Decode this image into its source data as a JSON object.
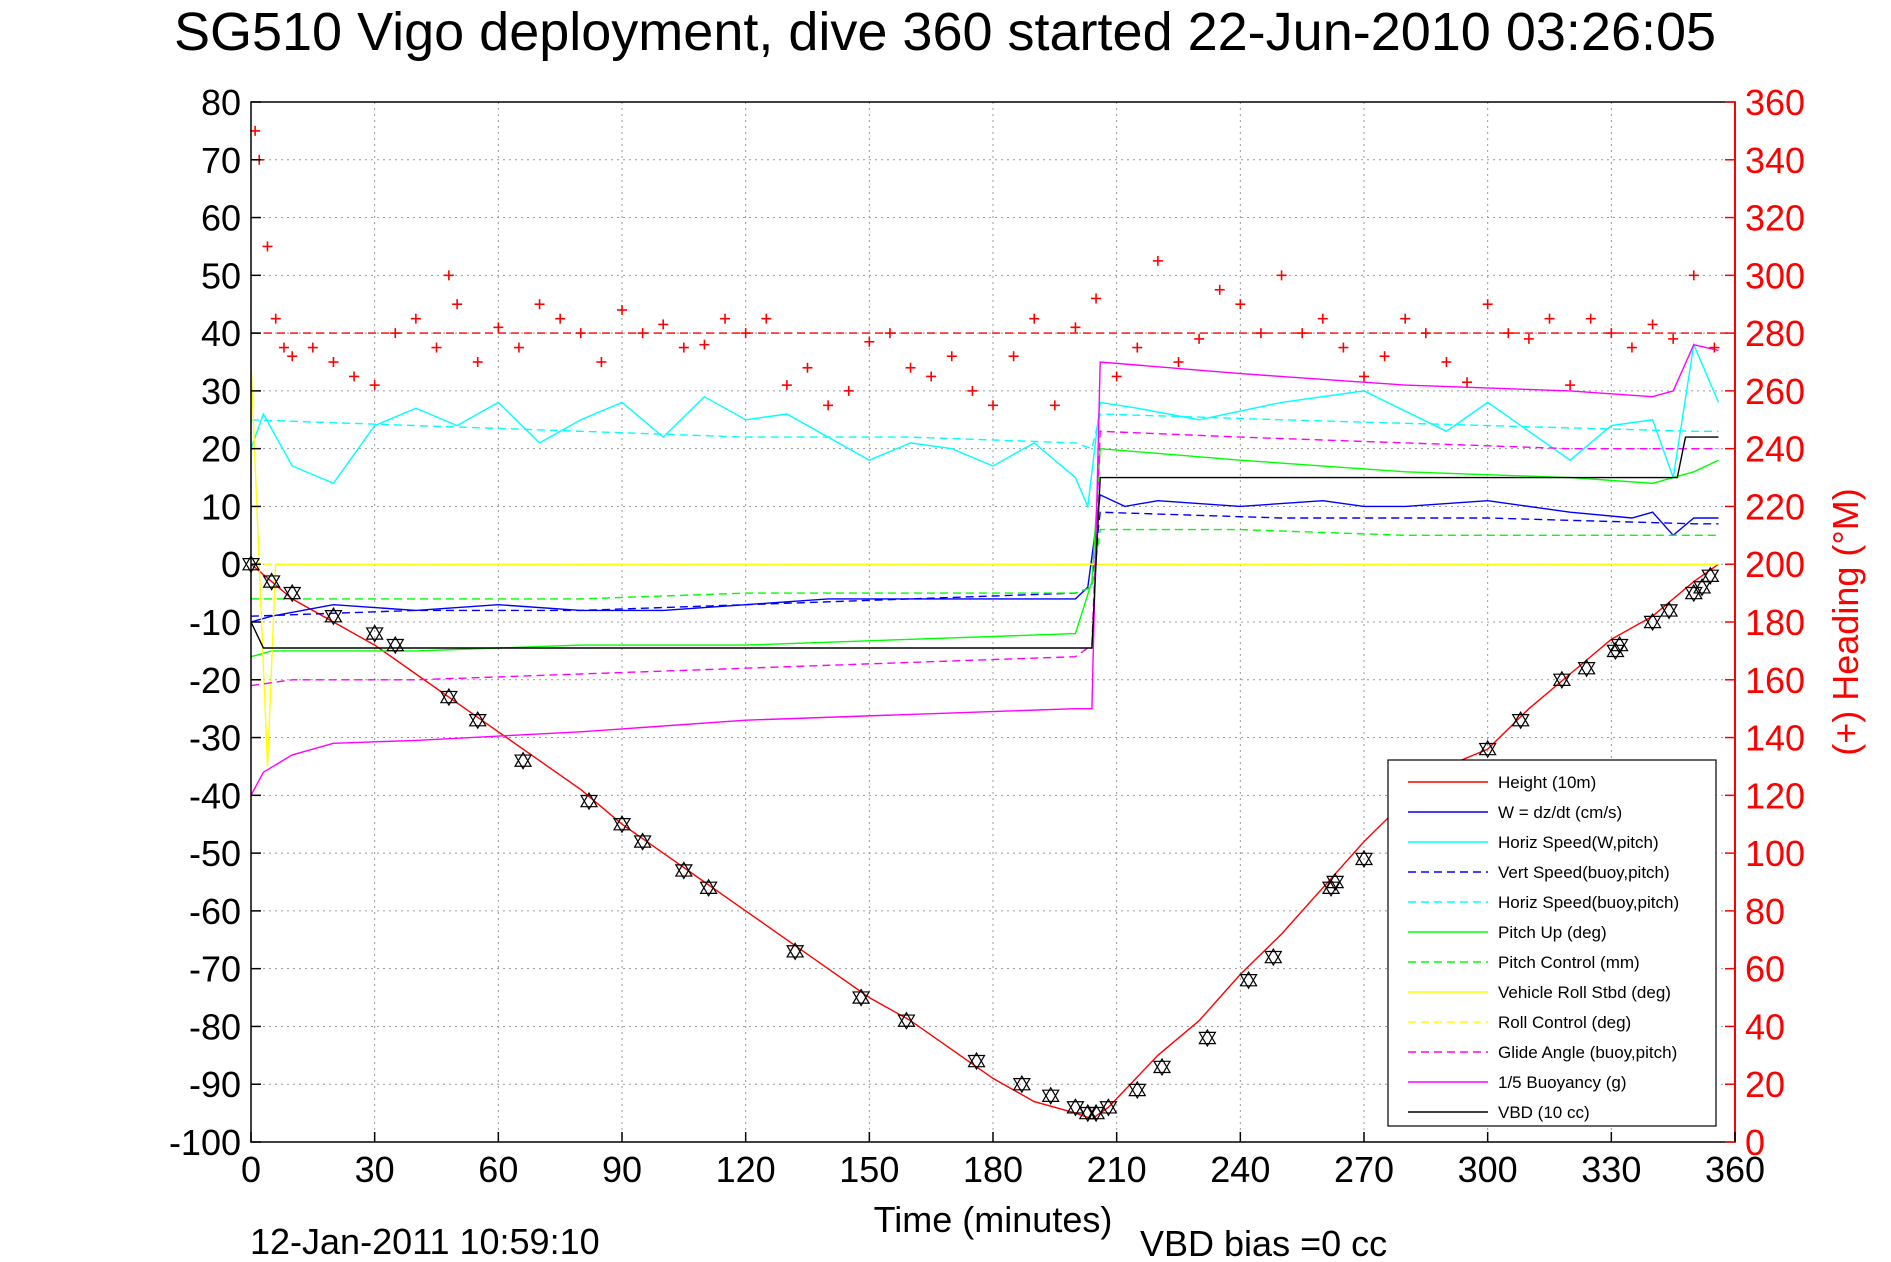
{
  "chart_data": {
    "type": "line",
    "title": "SG510 Vigo deployment, dive 360 started 22-Jun-2010 03:26:05",
    "xlabel": "Time (minutes)",
    "ylabel": "",
    "y2label": "(+) Heading (°M)",
    "xlim": [
      0,
      360
    ],
    "ylim": [
      -100,
      80
    ],
    "y2lim": [
      0,
      360
    ],
    "xticks": [
      "0",
      "30",
      "60",
      "90",
      "120",
      "150",
      "180",
      "210",
      "240",
      "270",
      "300",
      "330",
      "360"
    ],
    "yticks": [
      "80",
      "70",
      "60",
      "50",
      "40",
      "30",
      "20",
      "10",
      "0",
      "-10",
      "-20",
      "-30",
      "-40",
      "-50",
      "-60",
      "-70",
      "-80",
      "-90",
      "-100"
    ],
    "y2ticks": [
      "360",
      "340",
      "320",
      "300",
      "280",
      "260",
      "240",
      "220",
      "200",
      "180",
      "160",
      "140",
      "120",
      "100",
      "80",
      "60",
      "40",
      "20",
      "0"
    ],
    "grid": true,
    "legend_position": "lower-right",
    "footer_date": "12-Jan-2011 10:59:10",
    "footer_bias": "VBD bias =0 cc",
    "series": [
      {
        "name": "Height (10m)",
        "color": "#ff0000",
        "style": "solid",
        "x": [
          0,
          10,
          20,
          30,
          40,
          50,
          60,
          70,
          80,
          90,
          100,
          110,
          120,
          130,
          140,
          150,
          160,
          170,
          180,
          190,
          200,
          204,
          208,
          212,
          220,
          230,
          240,
          250,
          260,
          270,
          280,
          290,
          300,
          310,
          320,
          330,
          340,
          350,
          356
        ],
        "y": [
          0,
          -6,
          -10,
          -14,
          -19,
          -24,
          -29,
          -34,
          -39,
          -45,
          -50,
          -55,
          -60,
          -65,
          -70,
          -75,
          -79,
          -84,
          -89,
          -93,
          -95,
          -96,
          -94,
          -91,
          -85,
          -79,
          -71,
          -64,
          -56,
          -48,
          -41,
          -35,
          -32,
          -25,
          -19,
          -13,
          -9,
          -3,
          0
        ]
      },
      {
        "name": "W = dz/dt (cm/s)",
        "color": "#0000ff",
        "style": "solid",
        "x": [
          0,
          5,
          20,
          40,
          60,
          80,
          100,
          120,
          140,
          160,
          180,
          200,
          203,
          206,
          212,
          220,
          240,
          260,
          270,
          280,
          300,
          320,
          335,
          340,
          345,
          350,
          356
        ],
        "y": [
          -10,
          -9,
          -7,
          -8,
          -7,
          -8,
          -8,
          -7,
          -6,
          -6,
          -6,
          -6,
          -4,
          12,
          10,
          11,
          10,
          11,
          10,
          10,
          11,
          9,
          8,
          9,
          5,
          8,
          8
        ]
      },
      {
        "name": "Horiz Speed(W,pitch)",
        "color": "#00ffff",
        "style": "solid",
        "x": [
          0,
          3,
          10,
          20,
          30,
          40,
          50,
          60,
          70,
          80,
          90,
          100,
          110,
          120,
          130,
          140,
          150,
          160,
          170,
          180,
          190,
          200,
          203,
          206,
          215,
          230,
          250,
          270,
          290,
          300,
          320,
          330,
          340,
          345,
          350,
          356
        ],
        "y": [
          20,
          26,
          17,
          14,
          24,
          27,
          24,
          28,
          21,
          25,
          28,
          22,
          29,
          25,
          26,
          22,
          18,
          21,
          20,
          17,
          21,
          15,
          10,
          28,
          27,
          25,
          28,
          30,
          23,
          28,
          18,
          24,
          25,
          15,
          38,
          28
        ]
      },
      {
        "name": "Vert Speed(buoy,pitch)",
        "color": "#0000ff",
        "style": "dashed",
        "x": [
          0,
          40,
          80,
          120,
          160,
          200,
          204,
          206,
          250,
          300,
          350,
          356
        ],
        "y": [
          -9,
          -8,
          -8,
          -7,
          -6,
          -5,
          -4,
          9,
          8,
          8,
          7,
          7
        ]
      },
      {
        "name": "Horiz Speed(buoy,pitch)",
        "color": "#00ffff",
        "style": "dashed",
        "x": [
          0,
          40,
          80,
          120,
          160,
          200,
          204,
          206,
          250,
          300,
          350,
          356
        ],
        "y": [
          25,
          24,
          23,
          22,
          22,
          21,
          20,
          26,
          25,
          24,
          23,
          23
        ]
      },
      {
        "name": "Pitch Up (deg)",
        "color": "#00ff00",
        "style": "solid",
        "x": [
          0,
          5,
          40,
          80,
          120,
          160,
          200,
          204,
          206,
          240,
          280,
          320,
          340,
          350,
          356
        ],
        "y": [
          -16,
          -15,
          -15,
          -14,
          -14,
          -13,
          -12,
          -3,
          20,
          18,
          16,
          15,
          14,
          16,
          18
        ]
      },
      {
        "name": "Pitch Control (mm)",
        "color": "#00ff00",
        "style": "dashed",
        "x": [
          0,
          40,
          80,
          120,
          160,
          200,
          204,
          206,
          240,
          280,
          320,
          356
        ],
        "y": [
          -6,
          -6,
          -6,
          -5,
          -5,
          -5,
          -4,
          6,
          6,
          5,
          5,
          5
        ]
      },
      {
        "name": "Vehicle Roll Stbd (deg)",
        "color": "#ffff00",
        "style": "solid",
        "x": [
          0,
          2,
          4,
          6,
          10,
          14,
          20,
          30,
          40,
          50,
          60,
          70,
          80,
          90,
          100,
          110,
          120,
          130,
          140,
          150,
          160,
          170,
          180,
          190,
          200,
          204,
          206,
          210,
          230,
          250,
          270,
          290,
          310,
          330,
          350,
          356
        ],
        "y": [
          35,
          0,
          -35,
          0,
          0,
          0,
          0,
          0,
          0,
          0,
          0,
          0,
          0,
          0,
          0,
          0,
          0,
          0,
          0,
          0,
          0,
          0,
          0,
          0,
          0,
          0,
          0,
          0,
          0,
          0,
          0,
          0,
          0,
          0,
          0,
          0
        ]
      },
      {
        "name": "Roll Control (deg)",
        "color": "#ffff00",
        "style": "dashed",
        "x": [
          0,
          100,
          200,
          204,
          206,
          300,
          356
        ],
        "y": [
          0,
          0,
          0,
          0,
          0,
          0,
          0
        ]
      },
      {
        "name": "Glide Angle (buoy,pitch)",
        "color": "#ff00ff",
        "style": "dashed",
        "x": [
          0,
          10,
          40,
          80,
          120,
          160,
          200,
          204,
          206,
          240,
          280,
          320,
          356
        ],
        "y": [
          -21,
          -20,
          -20,
          -19,
          -18,
          -17,
          -16,
          -14,
          23,
          22,
          21,
          20,
          20
        ]
      },
      {
        "name": "1/5 Buoyancy (g)",
        "color": "#ff00ff",
        "style": "solid",
        "x": [
          0,
          3,
          10,
          20,
          40,
          80,
          120,
          160,
          200,
          204,
          206,
          240,
          280,
          320,
          340,
          345,
          350,
          356
        ],
        "y": [
          -40,
          -36,
          -33,
          -31,
          -30.5,
          -29,
          -27,
          -26,
          -25,
          -25,
          35,
          33,
          31,
          30,
          29,
          30,
          38,
          37
        ]
      },
      {
        "name": "VBD (10 cc)",
        "color": "#000000",
        "style": "solid",
        "x": [
          0,
          3,
          200,
          204,
          206,
          346,
          348,
          356
        ],
        "y": [
          -10,
          -14.5,
          -14.5,
          -14.5,
          15,
          15,
          22,
          22
        ]
      }
    ],
    "heading": {
      "name": "Heading (°M)",
      "color": "#ff0000",
      "axis": "right",
      "reference": 280,
      "x": [
        1,
        2,
        4,
        6,
        8,
        10,
        15,
        20,
        25,
        30,
        35,
        40,
        45,
        48,
        50,
        55,
        60,
        65,
        70,
        75,
        80,
        85,
        90,
        95,
        100,
        105,
        110,
        115,
        120,
        125,
        130,
        135,
        140,
        145,
        150,
        155,
        160,
        165,
        170,
        175,
        180,
        185,
        190,
        195,
        200,
        205,
        210,
        215,
        220,
        225,
        230,
        235,
        240,
        245,
        250,
        255,
        260,
        265,
        270,
        275,
        280,
        285,
        290,
        295,
        300,
        305,
        310,
        315,
        320,
        325,
        330,
        335,
        340,
        345,
        350,
        355
      ],
      "y": [
        350,
        340,
        310,
        285,
        275,
        272,
        275,
        270,
        265,
        262,
        280,
        285,
        275,
        300,
        290,
        270,
        282,
        275,
        290,
        285,
        280,
        270,
        288,
        280,
        283,
        275,
        276,
        285,
        280,
        285,
        262,
        268,
        255,
        260,
        277,
        280,
        268,
        265,
        272,
        260,
        255,
        272,
        285,
        255,
        282,
        292,
        265,
        275,
        305,
        270,
        278,
        295,
        290,
        280,
        300,
        280,
        285,
        275,
        265,
        272,
        285,
        280,
        270,
        263,
        290,
        280,
        278,
        285,
        262,
        285,
        280,
        275,
        283,
        278,
        300,
        275
      ]
    },
    "markers": {
      "name": "Height samples",
      "color": "#000000",
      "x": [
        0,
        5,
        10,
        20,
        30,
        35,
        48,
        55,
        66,
        82,
        90,
        95,
        105,
        111,
        132,
        148,
        159,
        176,
        187,
        194,
        200,
        203,
        205,
        208,
        215,
        221,
        232,
        242,
        248,
        262,
        263,
        270,
        300,
        308,
        318,
        324,
        331,
        332,
        340,
        344,
        350,
        352,
        354
      ],
      "y": [
        0,
        -3,
        -5,
        -9,
        -12,
        -14,
        -23,
        -27,
        -34,
        -41,
        -45,
        -48,
        -53,
        -56,
        -67,
        -75,
        -79,
        -86,
        -90,
        -92,
        -94,
        -95,
        -95,
        -94,
        -91,
        -87,
        -82,
        -72,
        -68,
        -56,
        -55,
        -51,
        -32,
        -27,
        -20,
        -18,
        -15,
        -14,
        -10,
        -8,
        -5,
        -4,
        -2
      ]
    }
  }
}
